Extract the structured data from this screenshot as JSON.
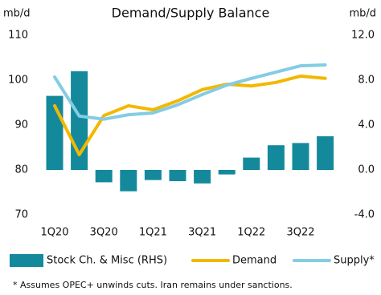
{
  "chart_data": {
    "type": "combo",
    "title": "Demand/Supply Balance",
    "y_label": "mb/d",
    "y2_label": "mb/d",
    "categories": [
      "1Q20",
      null,
      "3Q20",
      null,
      "1Q21",
      null,
      "3Q21",
      null,
      "1Q22",
      null,
      "3Q22",
      null
    ],
    "ylim": [
      70,
      110
    ],
    "yticks": [
      70,
      80,
      90,
      100,
      110
    ],
    "y2lim": [
      -4,
      12
    ],
    "y2ticks": [
      {
        "value": -4,
        "label": "-4.0"
      },
      {
        "value": 0,
        "label": "0.0"
      },
      {
        "value": 4,
        "label": "4.0"
      },
      {
        "value": 8,
        "label": "8.0"
      },
      {
        "value": 12,
        "label": "12.0"
      }
    ],
    "series": [
      {
        "name": "Stock Ch. & Misc (RHS)",
        "type": "bar",
        "axis": "y2",
        "color": "#14899c",
        "values": [
          6.6,
          8.8,
          -1.1,
          -1.9,
          -0.9,
          -1.0,
          -1.2,
          -0.4,
          1.1,
          2.2,
          2.4,
          3.0
        ]
      },
      {
        "name": "Demand",
        "type": "line",
        "axis": "y",
        "color": "#f2b800",
        "values": [
          94.3,
          83.4,
          92.1,
          94.3,
          93.4,
          95.4,
          97.9,
          99.1,
          98.7,
          99.5,
          100.9,
          100.4
        ]
      },
      {
        "name": "Supply*",
        "type": "line",
        "axis": "y",
        "color": "#84cce4",
        "values": [
          100.7,
          92.0,
          91.3,
          92.3,
          92.7,
          94.5,
          96.8,
          98.9,
          100.4,
          101.8,
          103.2,
          103.4
        ]
      }
    ],
    "footnote": "* Assumes OPEC+ unwinds cuts. Iran remains under sanctions."
  }
}
